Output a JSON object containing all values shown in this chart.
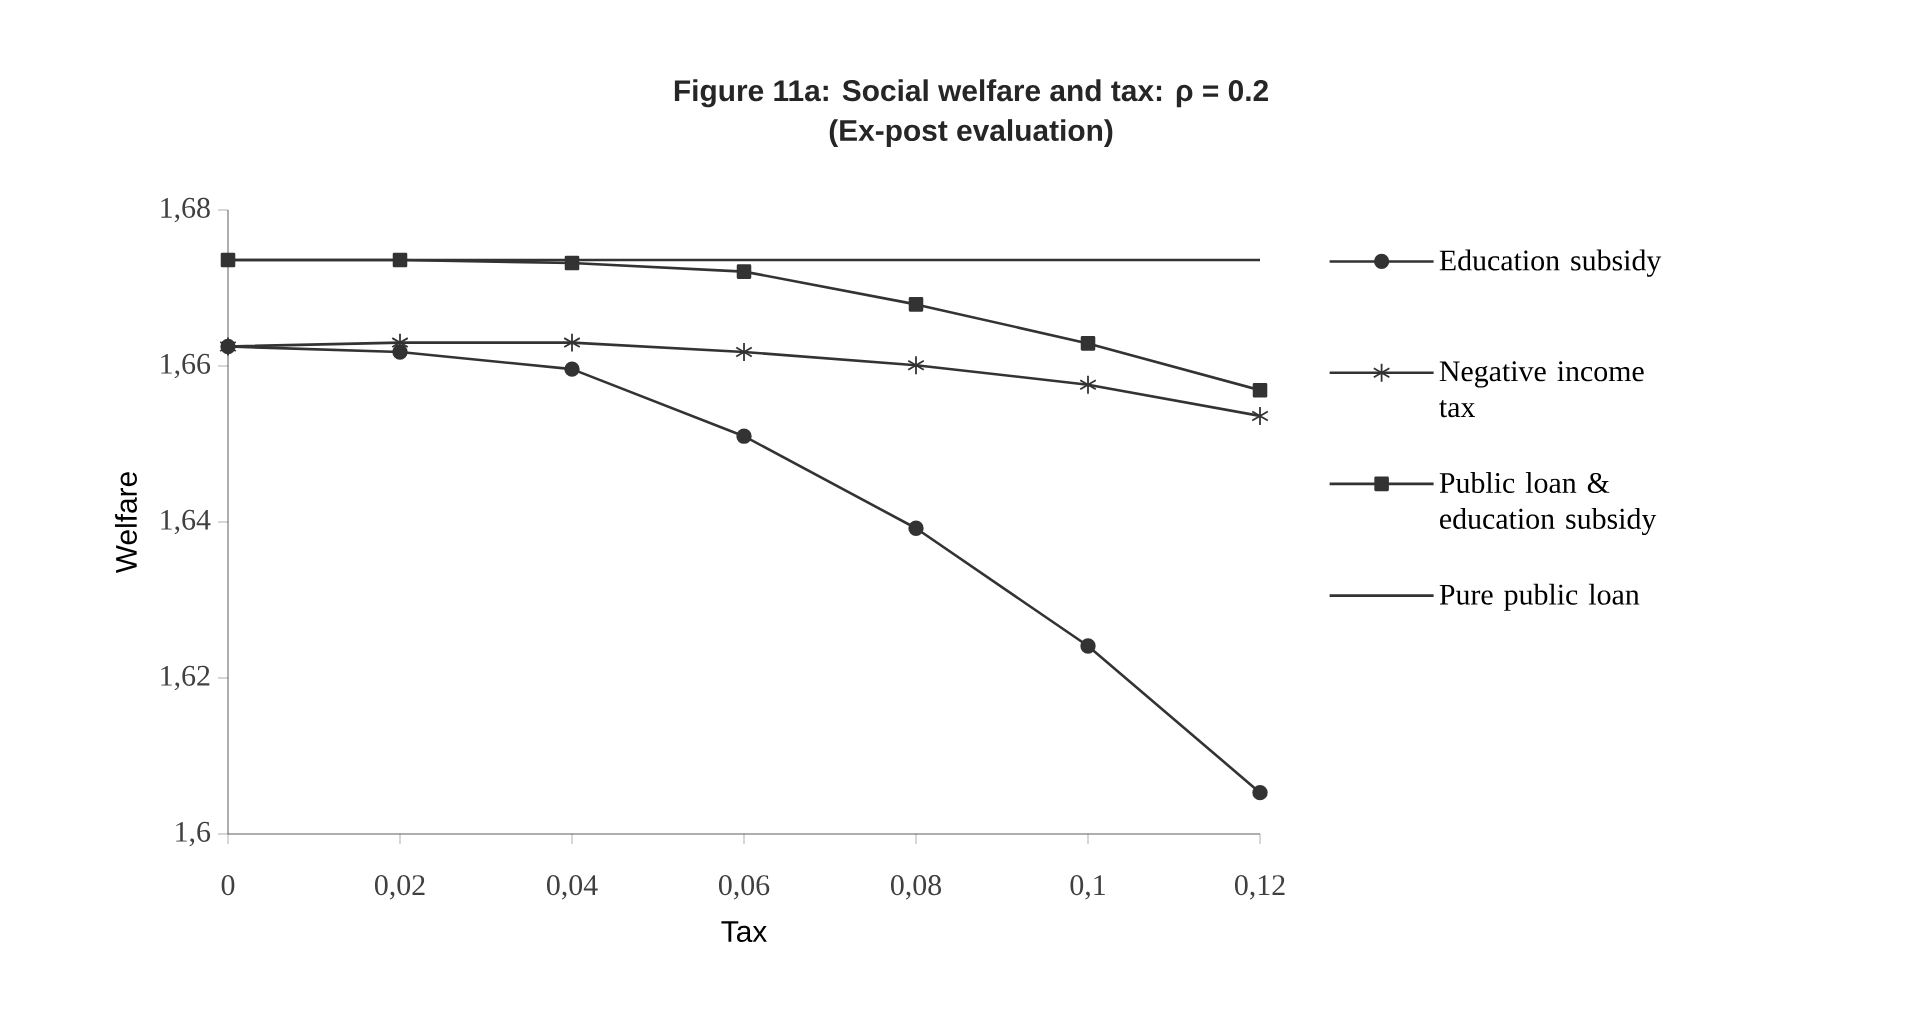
{
  "chart_data": {
    "type": "line",
    "title": "Figure 11a: Social welfare and tax: ρ = 0.2",
    "subtitle": "(Ex-post evaluation)",
    "xlabel": "Tax",
    "ylabel": "Welfare",
    "x": [
      0,
      0.02,
      0.04,
      0.06,
      0.08,
      0.1,
      0.12
    ],
    "series": [
      {
        "name": "Education subsidy",
        "color": "#333333",
        "marker": "circle",
        "values": [
          1.6625,
          1.6618,
          1.6596,
          1.651,
          1.6392,
          1.6241,
          1.6053
        ]
      },
      {
        "name": "Negative income tax",
        "color": "#333333",
        "marker": "cross",
        "values": [
          1.6625,
          1.663,
          1.663,
          1.6618,
          1.6601,
          1.6576,
          1.6536
        ]
      },
      {
        "name": "Public loan & education subsidy",
        "color": "#333333",
        "marker": "square",
        "values": [
          1.6736,
          1.6736,
          1.6732,
          1.6721,
          1.6679,
          1.6629,
          1.6569
        ]
      },
      {
        "name": "Pure public loan",
        "color": "#333333",
        "marker": "none",
        "values": [
          1.6736,
          1.6736,
          1.6736,
          1.6736,
          1.6736,
          1.6736,
          1.6736
        ]
      }
    ],
    "xlim": [
      0,
      0.12
    ],
    "ylim": [
      1.6,
      1.68
    ],
    "xticks": [
      0,
      {
        "value": 0.02,
        "label": "0,02"
      },
      {
        "value": 0.04,
        "label": "0,04"
      },
      {
        "value": 0.06,
        "label": "0,06"
      },
      {
        "value": 0.08,
        "label": "0,08"
      },
      {
        "value": 0.1,
        "label": "0,1"
      },
      {
        "value": 0.12,
        "label": "0,12"
      }
    ],
    "yticks": [
      {
        "value": 1.6,
        "label": "1,6"
      },
      {
        "value": 1.62,
        "label": "1,62"
      },
      {
        "value": 1.64,
        "label": "1,64"
      },
      {
        "value": 1.66,
        "label": "1,66"
      },
      {
        "value": 1.68,
        "label": "1,68"
      }
    ],
    "grid": false,
    "legend": "right",
    "line_style": "solid"
  }
}
